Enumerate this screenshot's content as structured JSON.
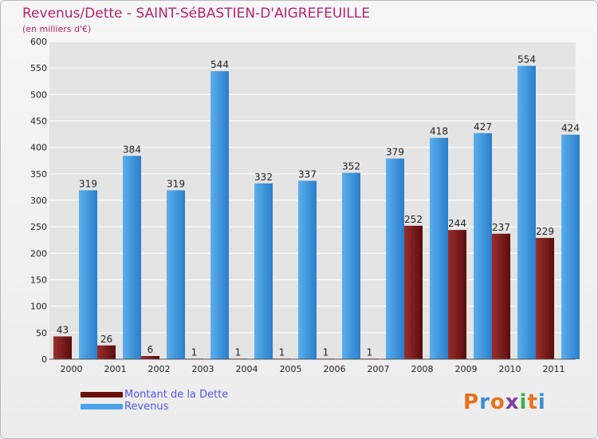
{
  "title": "Revenus/Dette - SAINT-SéBASTIEN-D'AIGREFEUILLE",
  "subtitle": "(en milliers d'€)",
  "colors": {
    "title": "#b5256b",
    "debt_light": "#9a2d2d",
    "debt_dark": "#5b0d0d",
    "revenue_light": "#5aaeeb",
    "revenue_dark": "#2a7fcb",
    "grid": "#ffffff",
    "axis_text": "#222222",
    "legend_text": "#5555ee"
  },
  "legend": [
    {
      "label": "Montant de la Dette",
      "color": "#6b0f0f"
    },
    {
      "label": "Revenus",
      "color": "#4aa3e8"
    }
  ],
  "logo": {
    "text": "Proxiti",
    "letters": [
      "P",
      "r",
      "o",
      "x",
      "i",
      "t",
      "i"
    ],
    "colors": [
      "#e8711c",
      "#3b8fd6",
      "#e8711c",
      "#7b3fa0",
      "#3bb04a",
      "#e8711c",
      "#3b8fd6"
    ]
  },
  "chart_data": {
    "type": "bar",
    "title": "Revenus/Dette - SAINT-SéBASTIEN-D'AIGREFEUILLE",
    "ylabel": "(en milliers d'€)",
    "xlabel": "",
    "categories": [
      "2000",
      "2001",
      "2002",
      "2003",
      "2004",
      "2005",
      "2006",
      "2007",
      "2008",
      "2009",
      "2010",
      "2011"
    ],
    "series": [
      {
        "name": "Montant de la Dette",
        "values": [
          43,
          26,
          6,
          1,
          1,
          1,
          1,
          1,
          252,
          244,
          237,
          229
        ]
      },
      {
        "name": "Revenus",
        "values": [
          319,
          384,
          319,
          544,
          332,
          337,
          352,
          379,
          418,
          427,
          554,
          424
        ]
      }
    ],
    "ylim": [
      0,
      600
    ],
    "yticks": [
      0,
      50,
      100,
      150,
      200,
      250,
      300,
      350,
      400,
      450,
      500,
      550,
      600
    ],
    "grid": true,
    "legend_position": "bottom-left"
  }
}
